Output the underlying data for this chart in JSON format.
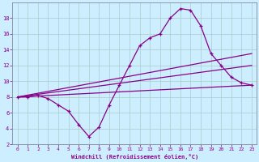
{
  "title": "",
  "xlabel": "Windchill (Refroidissement éolien,°C)",
  "ylabel": "",
  "background_color": "#cceeff",
  "grid_color": "#aacccc",
  "line_color": "#880088",
  "xlim": [
    -0.5,
    23.5
  ],
  "ylim": [
    2,
    20
  ],
  "yticks": [
    2,
    4,
    6,
    8,
    10,
    12,
    14,
    16,
    18
  ],
  "xticks": [
    0,
    1,
    2,
    3,
    4,
    5,
    6,
    7,
    8,
    9,
    10,
    11,
    12,
    13,
    14,
    15,
    16,
    17,
    18,
    19,
    20,
    21,
    22,
    23
  ],
  "line1_x": [
    0,
    1,
    2,
    3,
    4,
    5,
    6,
    7,
    8,
    9,
    10,
    11,
    12,
    13,
    14,
    15,
    16,
    17,
    18,
    19,
    20,
    21,
    22,
    23
  ],
  "line1_y": [
    8.0,
    8.0,
    8.2,
    7.8,
    7.0,
    6.2,
    4.5,
    3.0,
    4.2,
    7.0,
    9.5,
    12.0,
    14.5,
    15.5,
    16.0,
    18.0,
    19.2,
    19.0,
    17.0,
    13.5,
    12.0,
    10.5,
    9.8,
    9.5
  ],
  "line2_x": [
    0,
    23
  ],
  "line2_y": [
    8.0,
    9.5
  ],
  "line3_x": [
    0,
    23
  ],
  "line3_y": [
    8.0,
    13.5
  ],
  "line4_x": [
    0,
    23
  ],
  "line4_y": [
    8.0,
    12.0
  ]
}
